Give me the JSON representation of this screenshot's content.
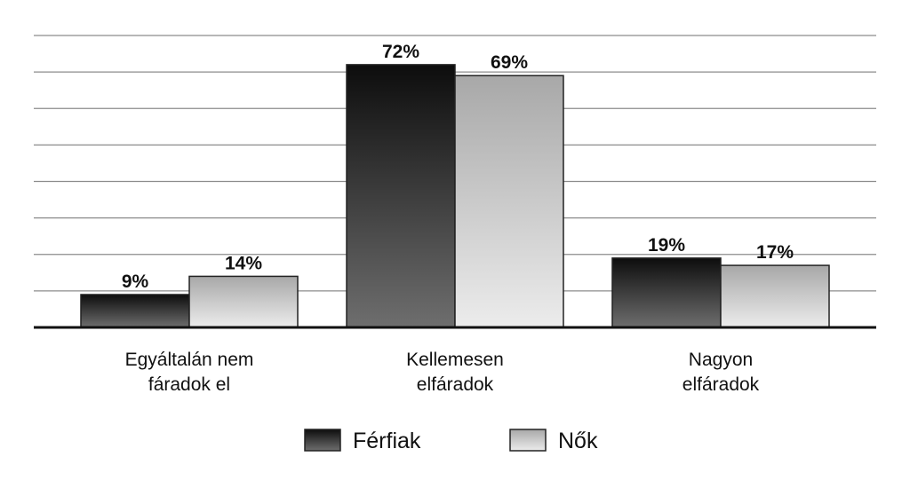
{
  "chart_data": {
    "type": "bar",
    "categories": [
      [
        "Egyáltalán nem",
        "fáradok el"
      ],
      [
        "Kellemesen",
        "elfáradok"
      ],
      [
        "Nagyon",
        "elfáradok"
      ]
    ],
    "series": [
      {
        "name": "Férfiak",
        "values": [
          9,
          72,
          19
        ],
        "labels": [
          "9%",
          "72%",
          "19%"
        ]
      },
      {
        "name": "Nők",
        "values": [
          14,
          69,
          17
        ],
        "labels": [
          "14%",
          "69%",
          "17%"
        ]
      }
    ],
    "ylim": [
      0,
      80
    ],
    "grid": true,
    "legend": "bottom-center",
    "colors": {
      "series_dark_top": "#0d0d0d",
      "series_dark_bottom": "#6e6e6e",
      "series_light_top": "#a8a8a8",
      "series_light_bottom": "#ececec",
      "grid": "#8c8c8c",
      "axis": "#111111"
    }
  }
}
